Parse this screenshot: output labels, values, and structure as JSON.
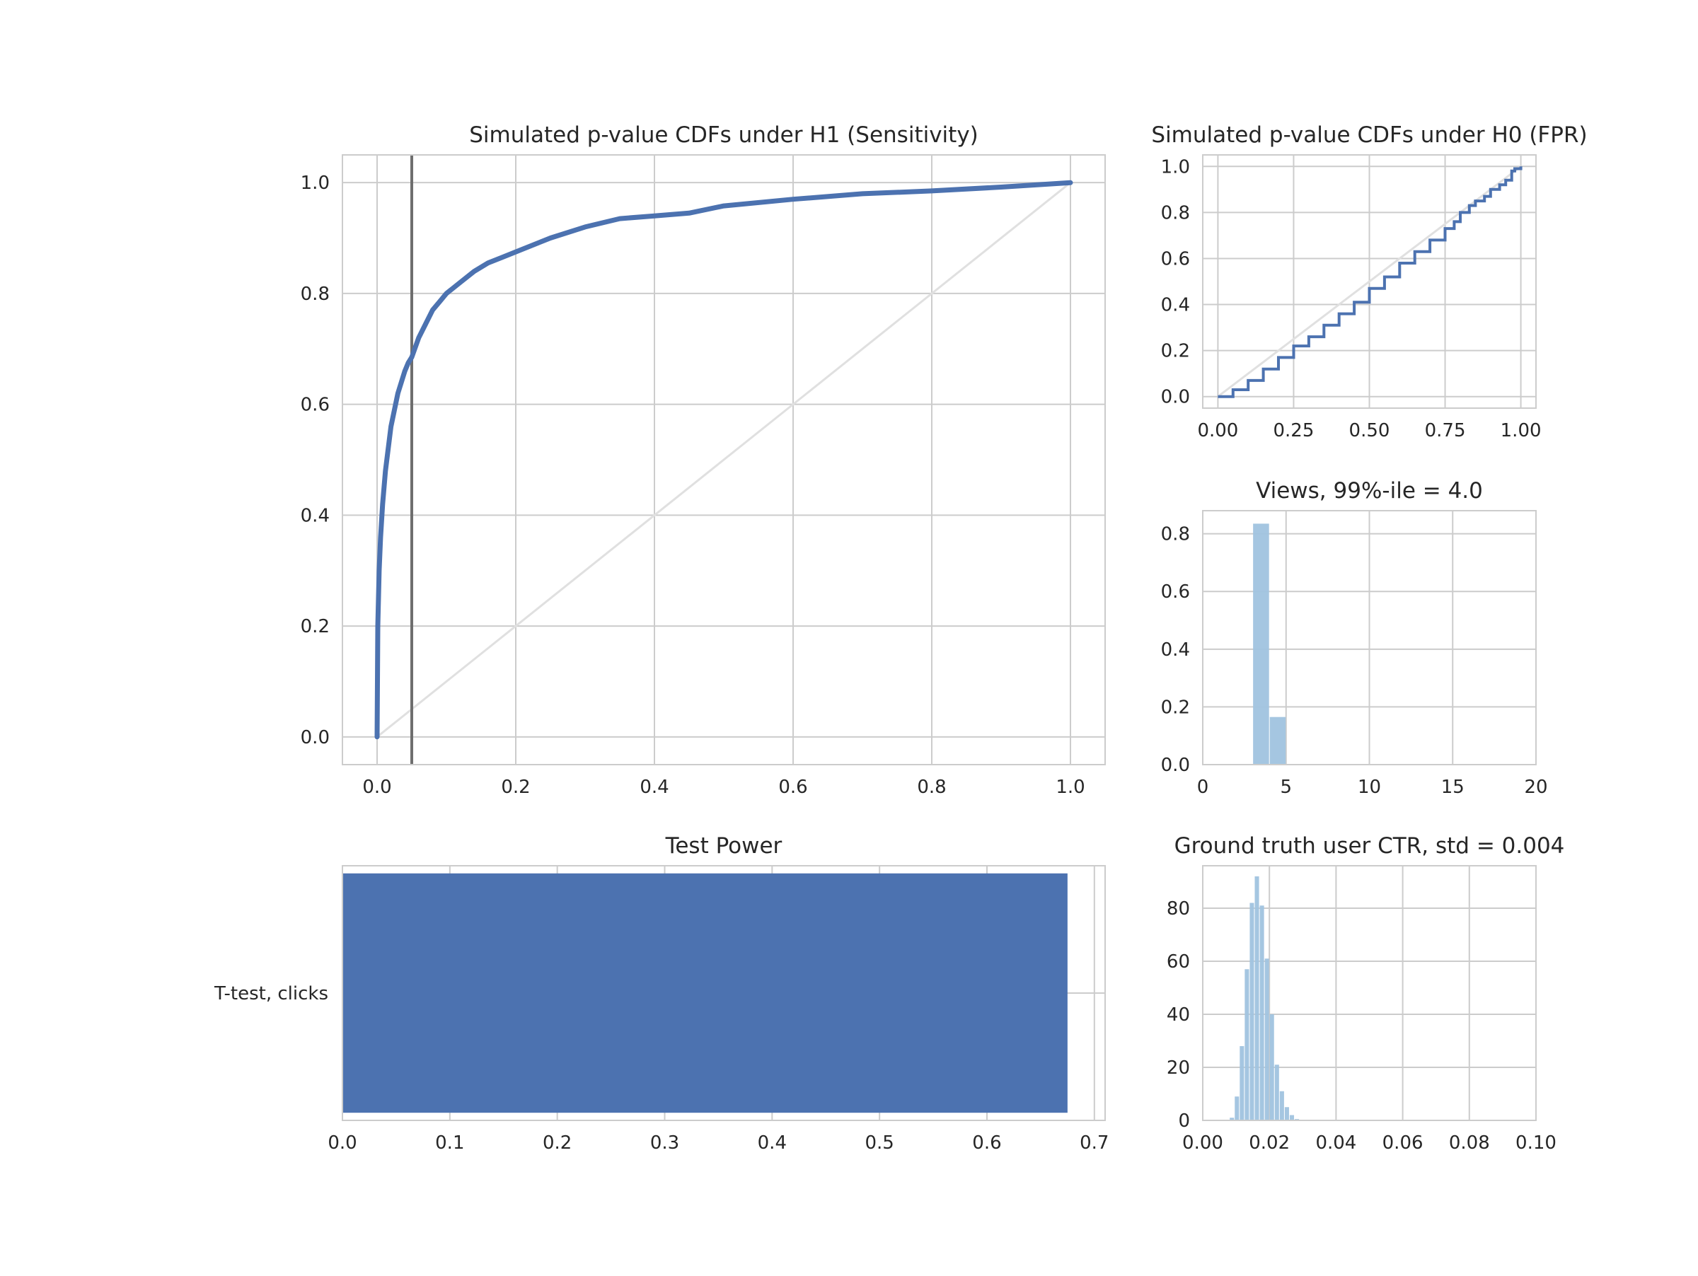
{
  "chart_data": [
    {
      "id": "h1",
      "type": "line",
      "title": "Simulated p-value CDFs under H1 (Sensitivity)",
      "xlabel": "",
      "ylabel": "",
      "xlim": [
        -0.05,
        1.05
      ],
      "ylim": [
        -0.05,
        1.05
      ],
      "grid": true,
      "xticks": [
        0.0,
        0.2,
        0.4,
        0.6,
        0.8,
        1.0
      ],
      "xtick_labels": [
        "0.0",
        "0.2",
        "0.4",
        "0.6",
        "0.8",
        "1.0"
      ],
      "yticks": [
        0.0,
        0.2,
        0.4,
        0.6,
        0.8,
        1.0
      ],
      "ytick_labels": [
        "0.0",
        "0.2",
        "0.4",
        "0.6",
        "0.8",
        "1.0"
      ],
      "series": [
        {
          "color": "#4c72b0",
          "x": [
            0.0,
            0.001,
            0.003,
            0.005,
            0.008,
            0.012,
            0.016,
            0.02,
            0.025,
            0.03,
            0.035,
            0.04,
            0.045,
            0.05,
            0.06,
            0.07,
            0.08,
            0.09,
            0.1,
            0.12,
            0.14,
            0.16,
            0.18,
            0.2,
            0.25,
            0.3,
            0.35,
            0.4,
            0.45,
            0.5,
            0.6,
            0.7,
            0.8,
            0.9,
            1.0
          ],
          "y": [
            0.0,
            0.2,
            0.3,
            0.36,
            0.42,
            0.48,
            0.52,
            0.56,
            0.59,
            0.62,
            0.64,
            0.66,
            0.675,
            0.685,
            0.72,
            0.745,
            0.77,
            0.785,
            0.8,
            0.82,
            0.84,
            0.855,
            0.865,
            0.875,
            0.9,
            0.92,
            0.935,
            0.94,
            0.945,
            0.958,
            0.97,
            0.98,
            0.985,
            0.992,
            1.0
          ]
        }
      ],
      "reference_diagonal": {
        "x": [
          0.0,
          1.0
        ],
        "y": [
          0.0,
          1.0
        ],
        "color": "#e0e0e0"
      },
      "vertical_line": {
        "x": 0.05,
        "color": "#6e6e6e"
      }
    },
    {
      "id": "h0",
      "type": "line",
      "title": "Simulated p-value CDFs under H0 (FPR)",
      "xlabel": "",
      "ylabel": "",
      "xlim": [
        -0.05,
        1.05
      ],
      "ylim": [
        -0.05,
        1.05
      ],
      "grid": true,
      "xticks": [
        0.0,
        0.25,
        0.5,
        0.75,
        1.0
      ],
      "xtick_labels": [
        "0.00",
        "0.25",
        "0.50",
        "0.75",
        "1.00"
      ],
      "yticks": [
        0.0,
        0.2,
        0.4,
        0.6,
        0.8,
        1.0
      ],
      "ytick_labels": [
        "0.0",
        "0.2",
        "0.4",
        "0.6",
        "0.8",
        "1.0"
      ],
      "series": [
        {
          "color": "#4c72b0",
          "x": [
            0.0,
            0.05,
            0.1,
            0.15,
            0.2,
            0.25,
            0.3,
            0.35,
            0.4,
            0.45,
            0.5,
            0.55,
            0.6,
            0.65,
            0.7,
            0.75,
            0.78,
            0.8,
            0.83,
            0.85,
            0.88,
            0.9,
            0.93,
            0.95,
            0.97,
            0.98,
            1.0
          ],
          "y": [
            0.0,
            0.03,
            0.07,
            0.12,
            0.17,
            0.22,
            0.26,
            0.31,
            0.36,
            0.41,
            0.47,
            0.52,
            0.58,
            0.63,
            0.68,
            0.73,
            0.76,
            0.8,
            0.83,
            0.85,
            0.87,
            0.9,
            0.92,
            0.94,
            0.98,
            0.99,
            1.0
          ]
        }
      ],
      "reference_diagonal": {
        "x": [
          0.0,
          1.0
        ],
        "y": [
          0.0,
          1.0
        ],
        "color": "#e0e0e0"
      }
    },
    {
      "id": "views",
      "type": "bar",
      "title": "Views, 99%-ile = 4.0",
      "xlabel": "",
      "ylabel": "",
      "xlim": [
        0,
        20
      ],
      "ylim": [
        0,
        0.88
      ],
      "grid": true,
      "xticks": [
        0,
        5,
        10,
        15,
        20
      ],
      "xtick_labels": [
        "0",
        "5",
        "10",
        "15",
        "20"
      ],
      "yticks": [
        0.0,
        0.2,
        0.4,
        0.6,
        0.8
      ],
      "ytick_labels": [
        "0.0",
        "0.2",
        "0.4",
        "0.6",
        "0.8"
      ],
      "color": "#a0c3df",
      "bins": [
        {
          "x0": 3.0,
          "x1": 4.0,
          "value": 0.835
        },
        {
          "x0": 4.0,
          "x1": 5.0,
          "value": 0.165
        }
      ]
    },
    {
      "id": "power",
      "type": "bar",
      "orientation": "horizontal",
      "title": "Test Power",
      "xlabel": "",
      "ylabel": "",
      "xlim": [
        0,
        0.71
      ],
      "grid": true,
      "xticks": [
        0.0,
        0.1,
        0.2,
        0.3,
        0.4,
        0.5,
        0.6,
        0.7
      ],
      "xtick_labels": [
        "0.0",
        "0.1",
        "0.2",
        "0.3",
        "0.4",
        "0.5",
        "0.6",
        "0.7"
      ],
      "categories": [
        "T-test, clicks"
      ],
      "values": [
        0.675
      ],
      "color": "#4c72b0"
    },
    {
      "id": "ctr",
      "type": "bar",
      "title": "Ground truth user CTR, std = 0.004",
      "xlabel": "",
      "ylabel": "",
      "xlim": [
        0.0,
        0.1
      ],
      "ylim": [
        0,
        96
      ],
      "grid": true,
      "xticks": [
        0.0,
        0.02,
        0.04,
        0.06,
        0.08,
        0.1
      ],
      "xtick_labels": [
        "0.00",
        "0.02",
        "0.04",
        "0.06",
        "0.08",
        "0.10"
      ],
      "yticks": [
        0,
        20,
        40,
        60,
        80
      ],
      "ytick_labels": [
        "0",
        "20",
        "40",
        "60",
        "80"
      ],
      "color": "#a0c3df",
      "bin_start": 0.008,
      "bin_width": 0.0015,
      "values": [
        1,
        9,
        28,
        57,
        82,
        92,
        81,
        61,
        40,
        21,
        11,
        5,
        2,
        0.5
      ]
    }
  ]
}
